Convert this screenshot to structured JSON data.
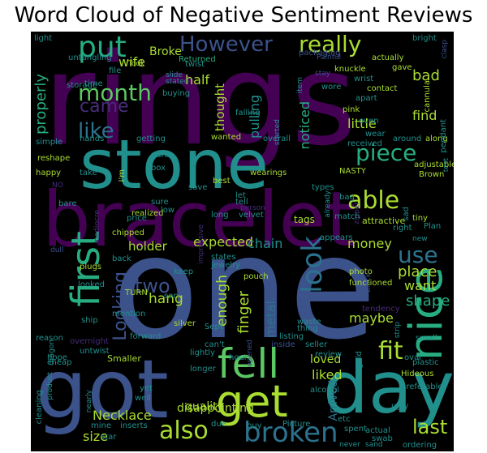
{
  "title": "Word Cloud of Negative Sentiment Reviews",
  "words": {
    "rings": "rings",
    "stone": "stone",
    "bracelet": "bracelet",
    "one": "one",
    "got": "got",
    "day": "day",
    "get": "get",
    "fell": "fell",
    "nice": "nice",
    "first": "first",
    "broken": "broken",
    "also": "also",
    "put": "put",
    "month": "month",
    "came": "came",
    "like": "like",
    "look": "look",
    "use": "use",
    "able": "able",
    "piece": "piece",
    "fit": "fit",
    "really": "really",
    "however": "However",
    "two": "two",
    "necklace": "Necklace",
    "quality": "quality",
    "size": "size",
    "last": "last",
    "looking": "Looking",
    "holder": "holder",
    "expected": "expected",
    "chain": "chain",
    "money": "money",
    "place": "place",
    "want": "want",
    "shape": "shape",
    "maybe": "maybe",
    "liked": "liked",
    "loved": "loved",
    "finger": "finger",
    "enough": "enough",
    "metal": "metal",
    "disappointing": "disappointing",
    "hang": "hang",
    "find": "find",
    "little": "little",
    "bad": "bad",
    "wife": "wife",
    "broke": "Broke",
    "half": "half",
    "thought": "thought",
    "pulling": "pulling",
    "noticed": "noticed",
    "properly": "properly",
    "arrived": "Arrived",
    "nasty": "NASTY",
    "wanted": "wanted",
    "attractive": "attractive",
    "hideous": "Hideous",
    "smaller": "Smaller",
    "silver": "silver",
    "untangling": "untangling",
    "packaging": "packaging",
    "returned": "Returned",
    "bright": "bright",
    "knuckle": "knuckle",
    "actually": "actually",
    "gave": "gave",
    "twist": "twist",
    "took": "Took",
    "painful": "Painful",
    "storage": "storage",
    "time": "time",
    "file": "file",
    "buying": "buying",
    "slide": "slide",
    "item": "item",
    "wore": "wore",
    "contact": "contact",
    "apart": "apart",
    "wrist": "wrist",
    "cannula": "cannula",
    "pink": "pink",
    "even": "even",
    "wear": "wear",
    "around": "around",
    "along": "along",
    "pendant": "pendant",
    "received": "received",
    "adjustable": "adjustable",
    "brown": "Brown",
    "test": "test",
    "falling": "falling",
    "overall": "overall",
    "started": "started",
    "hands": "hands",
    "getting": "getting",
    "simple": "simple",
    "reshape": "reshape",
    "happy": "happy",
    "cheap": "cheap",
    "im": "I'm",
    "parts": "parts",
    "take": "take",
    "box": "box",
    "best": "best",
    "wearings": "wearings",
    "save": "save",
    "tell": "tell",
    "types": "types",
    "already": "already",
    "bag": "bag",
    "zipper": "zipper",
    "sad": "sad",
    "tiny": "tiny",
    "plan": "Plan",
    "right": "right",
    "new": "new",
    "let": "let",
    "person": "person",
    "long": "long",
    "velvet": "velvet",
    "tags": "tags",
    "match": "match",
    "appears": "appears",
    "realized": "realized",
    "price": "price",
    "sure": "sure",
    "low": "low",
    "bare": "bare",
    "chipped": "chipped",
    "states": "states",
    "jewelry": "jewelry",
    "back": "back",
    "plugs": "plugs",
    "keep": "keep",
    "pouch": "pouch",
    "photo": "photo",
    "black": "black",
    "functioned": "functioned",
    "looked": "looked",
    "turn": "TURN",
    "son": "son",
    "mention": "mention",
    "ship": "ship",
    "tendency": "tendency",
    "waste": "waste",
    "thing": "thing",
    "reason": "reason",
    "forward": "forward",
    "overnight": "overnight",
    "untwist": "untwist",
    "sept": "Sept",
    "listing": "listing",
    "inside": "inside",
    "strip": "strip",
    "small": "small",
    "hope": "hope",
    "cant": "can't",
    "seller": "seller",
    "review": "review",
    "gold": "gold",
    "oval": "oval",
    "plastic": "plastic",
    "dragon": "dragon",
    "lightly": "lightly",
    "hour": "hour",
    "longer": "longer",
    "preferable": "preferable",
    "alcohol": "alcohol",
    "yet": "yet",
    "well": "well",
    "ugly": "ugly",
    "cleaning": "cleaning",
    "nearly": "nearly",
    "mine": "mine",
    "inserts": "inserts",
    "due": "due",
    "buy": "buy",
    "picture": "Picture",
    "etc": "etc",
    "spent": "spent",
    "actual": "actual",
    "swab": "swab",
    "sand": "sand",
    "never": "never",
    "ordering": "ordering",
    "star": "star",
    "light": "light",
    "stay": "stay",
    "stated": "stated",
    "product": "product",
    "impressive": "impressive",
    "no": "NO",
    "opened": "opened",
    "mediocre": "mediocre",
    "dull": "dull",
    "clasp": "clasp"
  },
  "colors": {
    "background": "#000000",
    "viridis_dark_purple": "#440154",
    "viridis_purple": "#472c7a",
    "viridis_blue": "#3b528b",
    "viridis_steel": "#2c728e",
    "viridis_teal": "#21908d",
    "viridis_green": "#27ad81",
    "viridis_light_green": "#5cc863",
    "viridis_lime": "#aadc32",
    "viridis_yellow": "#fde725"
  }
}
